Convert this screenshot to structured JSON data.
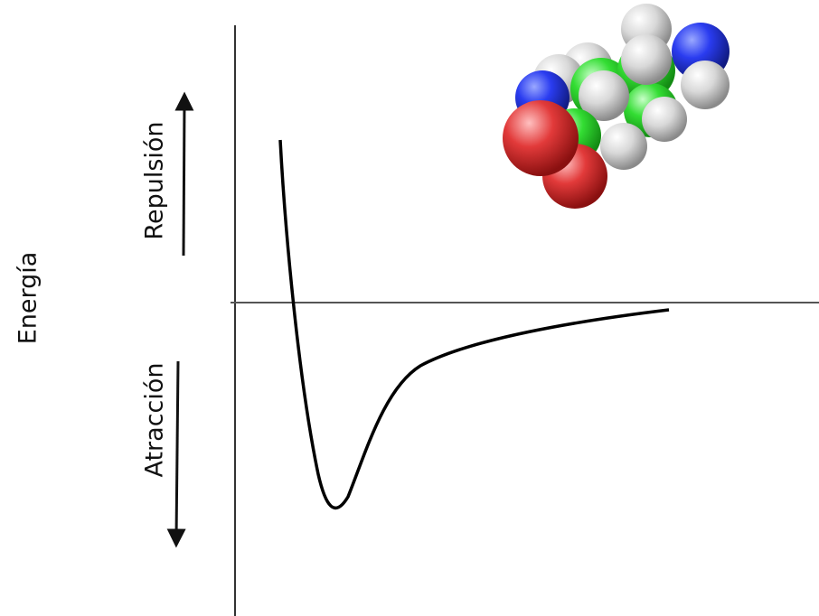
{
  "labels": {
    "y_axis": "Energía",
    "repulsion": "Repulsión",
    "attraction": "Atracción"
  }
}
